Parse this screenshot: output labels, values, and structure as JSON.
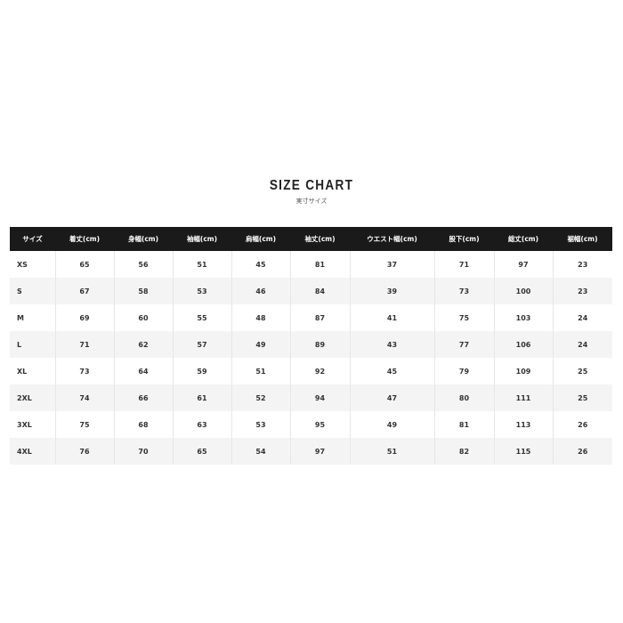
{
  "title": "SIZE CHART",
  "subtitle": "実寸サイズ",
  "headers": [
    "サイズ",
    "着丈(cm)",
    "身幅(cm)",
    "袖幅(cm)",
    "肩幅(cm)",
    "袖丈(cm)",
    "ウエスト幅(cm)",
    "股下(cm)",
    "総丈(cm)",
    "裾幅(cm)"
  ],
  "rows": [
    [
      "XS",
      "65",
      "56",
      "51",
      "45",
      "81",
      "37",
      "71",
      "97",
      "23"
    ],
    [
      "S",
      "67",
      "58",
      "53",
      "46",
      "84",
      "39",
      "73",
      "100",
      "23"
    ],
    [
      "M",
      "69",
      "60",
      "55",
      "48",
      "87",
      "41",
      "75",
      "103",
      "24"
    ],
    [
      "L",
      "71",
      "62",
      "57",
      "49",
      "89",
      "43",
      "77",
      "106",
      "24"
    ],
    [
      "XL",
      "73",
      "64",
      "59",
      "51",
      "92",
      "45",
      "79",
      "109",
      "25"
    ],
    [
      "2XL",
      "74",
      "66",
      "61",
      "52",
      "94",
      "47",
      "80",
      "111",
      "25"
    ],
    [
      "3XL",
      "75",
      "68",
      "63",
      "53",
      "95",
      "49",
      "81",
      "113",
      "26"
    ],
    [
      "4XL",
      "76",
      "70",
      "65",
      "54",
      "97",
      "51",
      "82",
      "115",
      "26"
    ]
  ]
}
